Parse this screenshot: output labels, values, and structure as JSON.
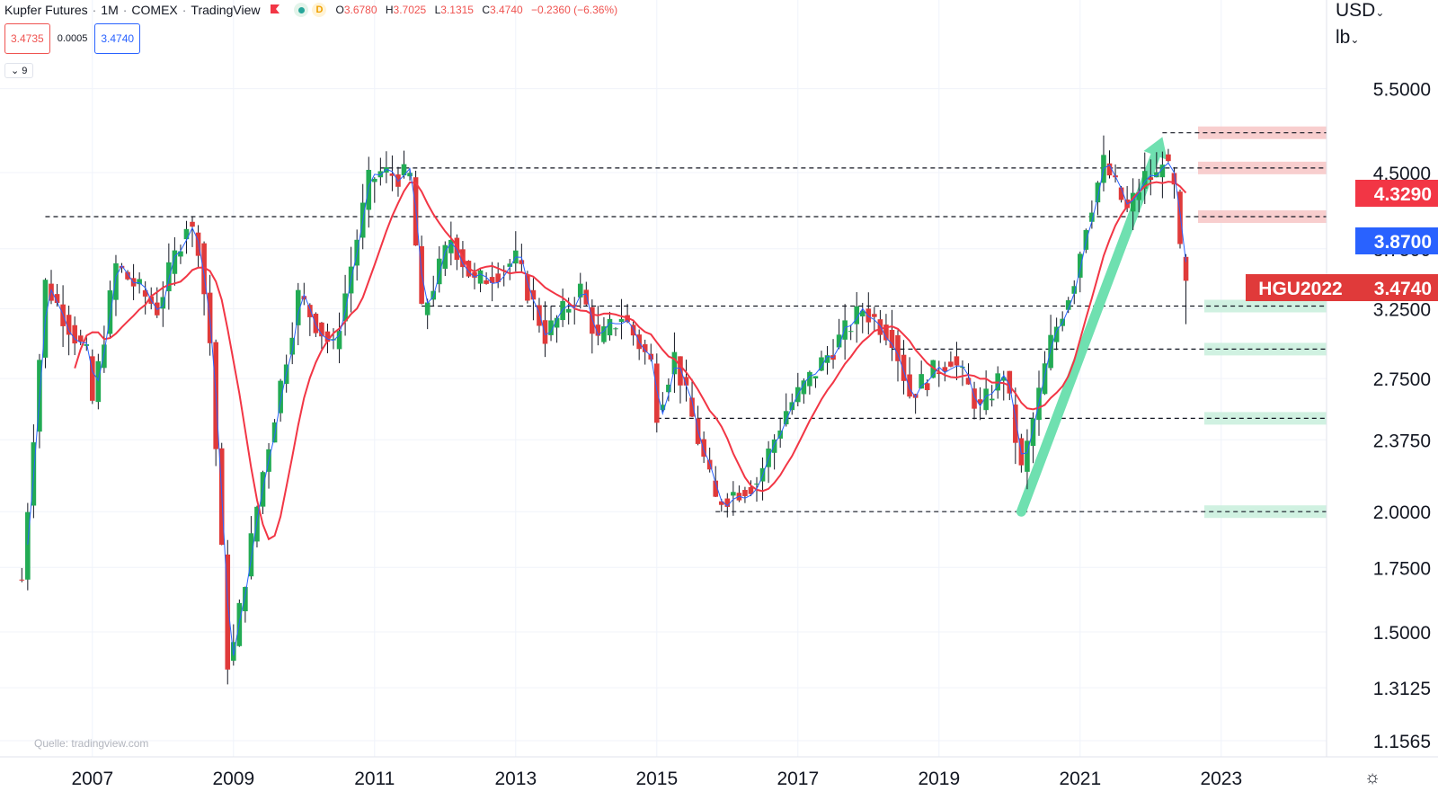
{
  "header": {
    "symbol_name": "Kupfer Futures",
    "interval": "1M",
    "exchange": "COMEX",
    "provider": "TradingView",
    "separator": "·",
    "market_status_icon": "green-dot-icon",
    "delay_badge": "D",
    "ohlc": {
      "open_label": "O",
      "open": "3.6780",
      "high_label": "H",
      "high": "3.7025",
      "low_label": "L",
      "low": "3.1315",
      "close_label": "C",
      "close": "3.4740",
      "change": "−0.2360 (−6.36%)"
    }
  },
  "trade": {
    "sell_price": "3.4735",
    "spread": "0.0005",
    "buy_price": "3.4740"
  },
  "indicators_toggle": {
    "label": "9",
    "icon": "chevron-down-icon"
  },
  "price_axis": {
    "currency": "USD",
    "unit": "lb",
    "ticks": [
      "5.5000",
      "4.5000",
      "3.7500",
      "3.2500",
      "2.7500",
      "2.3750",
      "2.0000",
      "1.7500",
      "1.5000",
      "1.3125",
      "1.1565"
    ],
    "settings_icon": "gear-icon"
  },
  "time_axis": {
    "ticks": [
      "2007",
      "2009",
      "2011",
      "2013",
      "2015",
      "2017",
      "2019",
      "2021",
      "2023"
    ]
  },
  "price_labels": {
    "ma_value": "4.3290",
    "blue_line_value": "3.8700",
    "symbol_tag": "HGU2022",
    "last_price": "3.4740"
  },
  "source": "Quelle: tradingview.com",
  "colors": {
    "up": "#26a69a",
    "up_candle": "#22ab54",
    "down": "#e03a3a",
    "ma_red": "#f23645",
    "ma_blue": "#2962ff",
    "arrow": "#6fe0b0",
    "resistance_zone": "#f7c6c6",
    "support_zone": "#c8efdc"
  },
  "chart_data": {
    "type": "candlestick",
    "interval": "1M",
    "price_scale": "log",
    "ylim": [
      1.1565,
      5.9
    ],
    "x_ticks": [
      "2007",
      "2009",
      "2011",
      "2013",
      "2015",
      "2017",
      "2019",
      "2021",
      "2023"
    ],
    "y_ticks": [
      5.5,
      4.5,
      3.75,
      3.25,
      2.75,
      2.375,
      2.0,
      1.75,
      1.5,
      1.3125,
      1.1565
    ],
    "anchor_points": [
      {
        "date": "2006-01",
        "close": 1.7
      },
      {
        "date": "2006-05",
        "close": 3.45
      },
      {
        "date": "2006-12",
        "close": 2.9
      },
      {
        "date": "2007-01",
        "close": 2.6
      },
      {
        "date": "2007-05",
        "close": 3.6
      },
      {
        "date": "2007-12",
        "close": 3.25
      },
      {
        "date": "2008-05",
        "close": 4.0
      },
      {
        "date": "2008-07",
        "close": 3.8
      },
      {
        "date": "2008-09",
        "close": 3.0
      },
      {
        "date": "2008-12",
        "close": 1.4
      },
      {
        "date": "2009-01",
        "close": 1.45
      },
      {
        "date": "2009-06",
        "close": 2.2
      },
      {
        "date": "2009-12",
        "close": 3.35
      },
      {
        "date": "2010-06",
        "close": 2.95
      },
      {
        "date": "2010-12",
        "close": 4.4
      },
      {
        "date": "2011-02",
        "close": 4.5
      },
      {
        "date": "2011-07",
        "close": 4.45
      },
      {
        "date": "2011-09",
        "close": 3.2
      },
      {
        "date": "2012-02",
        "close": 3.85
      },
      {
        "date": "2012-06",
        "close": 3.45
      },
      {
        "date": "2013-01",
        "close": 3.65
      },
      {
        "date": "2013-06",
        "close": 3.05
      },
      {
        "date": "2013-12",
        "close": 3.4
      },
      {
        "date": "2014-03",
        "close": 3.0
      },
      {
        "date": "2014-07",
        "close": 3.2
      },
      {
        "date": "2014-12",
        "close": 2.85
      },
      {
        "date": "2015-01",
        "close": 2.55
      },
      {
        "date": "2015-04",
        "close": 2.9
      },
      {
        "date": "2015-11",
        "close": 2.05
      },
      {
        "date": "2016-06",
        "close": 2.15
      },
      {
        "date": "2016-11",
        "close": 2.55
      },
      {
        "date": "2017-02",
        "close": 2.7
      },
      {
        "date": "2017-12",
        "close": 3.25
      },
      {
        "date": "2018-05",
        "close": 3.05
      },
      {
        "date": "2018-08",
        "close": 2.65
      },
      {
        "date": "2019-03",
        "close": 2.9
      },
      {
        "date": "2019-08",
        "close": 2.55
      },
      {
        "date": "2019-12",
        "close": 2.8
      },
      {
        "date": "2020-03",
        "close": 2.2
      },
      {
        "date": "2020-08",
        "close": 3.0
      },
      {
        "date": "2020-12",
        "close": 3.5
      },
      {
        "date": "2021-02",
        "close": 4.0
      },
      {
        "date": "2021-05",
        "close": 4.6
      },
      {
        "date": "2021-09",
        "close": 4.1
      },
      {
        "date": "2021-12",
        "close": 4.45
      },
      {
        "date": "2022-02",
        "close": 4.45
      },
      {
        "date": "2022-03",
        "close": 4.7
      },
      {
        "date": "2022-05",
        "close": 4.3
      },
      {
        "date": "2022-06",
        "close": 3.7
      },
      {
        "date": "2022-07",
        "close": 3.474
      }
    ],
    "last_bar": {
      "date": "2022-07",
      "open": 3.678,
      "high": 3.7025,
      "low": 3.1315,
      "close": 3.474
    },
    "moving_averages": [
      {
        "name": "",
        "color": "#f23645",
        "length_months": 10,
        "last_value": 4.329
      },
      {
        "name": "",
        "color": "#2962ff",
        "length_months": 2,
        "last_value": 3.87
      }
    ],
    "horizontal_levels": [
      {
        "price": 4.95,
        "date_from": "2022-03",
        "style": "dashed"
      },
      {
        "price": 4.55,
        "date_from": "2011-02",
        "style": "dashed"
      },
      {
        "price": 4.05,
        "date_from": "2006-05",
        "style": "dashed"
      },
      {
        "price": 3.27,
        "date_from": "2011-09",
        "style": "dashed"
      },
      {
        "price": 2.95,
        "date_from": "2018-05",
        "style": "dashed"
      },
      {
        "price": 2.5,
        "date_from": "2015-01",
        "style": "dashed"
      },
      {
        "price": 2.0,
        "date_from": "2015-11",
        "style": "dashed"
      }
    ],
    "zones": [
      {
        "kind": "resistance",
        "price": 4.95
      },
      {
        "kind": "resistance",
        "price": 4.55
      },
      {
        "kind": "resistance",
        "price": 4.05
      },
      {
        "kind": "support",
        "price": 3.27
      },
      {
        "kind": "support",
        "price": 2.95
      },
      {
        "kind": "support",
        "price": 2.5
      },
      {
        "kind": "support",
        "price": 2.0
      }
    ],
    "trend_arrow": {
      "from": {
        "date": "2020-03",
        "price": 2.0
      },
      "to": {
        "date": "2022-03",
        "price": 4.9
      }
    }
  }
}
